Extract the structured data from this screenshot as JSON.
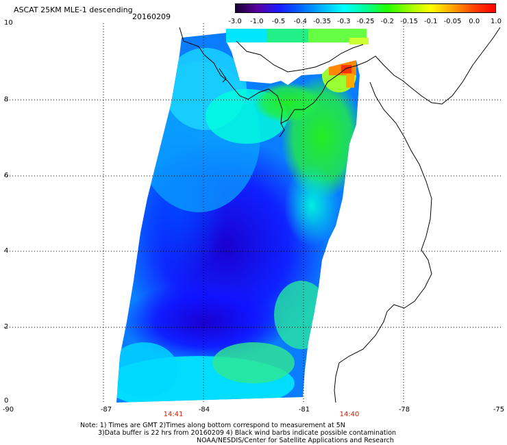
{
  "header": {
    "title": "ASCAT 25KM MLE-1 descending",
    "date": "20160209"
  },
  "colorbar": {
    "labels": [
      "-3.0",
      "-1.0",
      "-0.5",
      "-0.4",
      "-0.35",
      "-0.3",
      "-0.25",
      "-0.2",
      "-0.15",
      "-0.1",
      "-0.05",
      "0.0",
      "1.0"
    ],
    "colors": [
      "#1a0030",
      "#5a00a0",
      "#1a1aff",
      "#0066ff",
      "#00b4ff",
      "#00ffff",
      "#00ff99",
      "#22ff00",
      "#99ff00",
      "#ffff00",
      "#ffa500",
      "#ff4400",
      "#ff0000"
    ]
  },
  "axes": {
    "y_labels": [
      "10",
      "8",
      "6",
      "4",
      "2",
      "0"
    ],
    "x_labels": [
      "-90",
      "-87",
      "-84",
      "-81",
      "-78",
      "-75"
    ],
    "x_range": [
      -90,
      -75
    ],
    "y_range": [
      0,
      10
    ]
  },
  "times": [
    "14:41",
    "14:40"
  ],
  "notes": {
    "line1": "Note: 1) Times are GMT 2)Times along bottom correspond to measurement at 5N",
    "line2": "3)Data buffer is 22 hrs from 20160209 4) Black wind barbs indicate possible contamination",
    "line3": "NOAA/NESDIS/Center for Satellite Applications and Research"
  },
  "chart_data": {
    "type": "heatmap",
    "title": "ASCAT 25KM MLE-1 descending",
    "date": "20160209",
    "xlim": [
      -90,
      -75
    ],
    "ylim": [
      0,
      10
    ],
    "value_labels": [
      "-3.0",
      "-1.0",
      "-0.5",
      "-0.4",
      "-0.35",
      "-0.3",
      "-0.25",
      "-0.2",
      "-0.15",
      "-0.1",
      "-0.05",
      "0.0",
      "1.0"
    ]
  }
}
